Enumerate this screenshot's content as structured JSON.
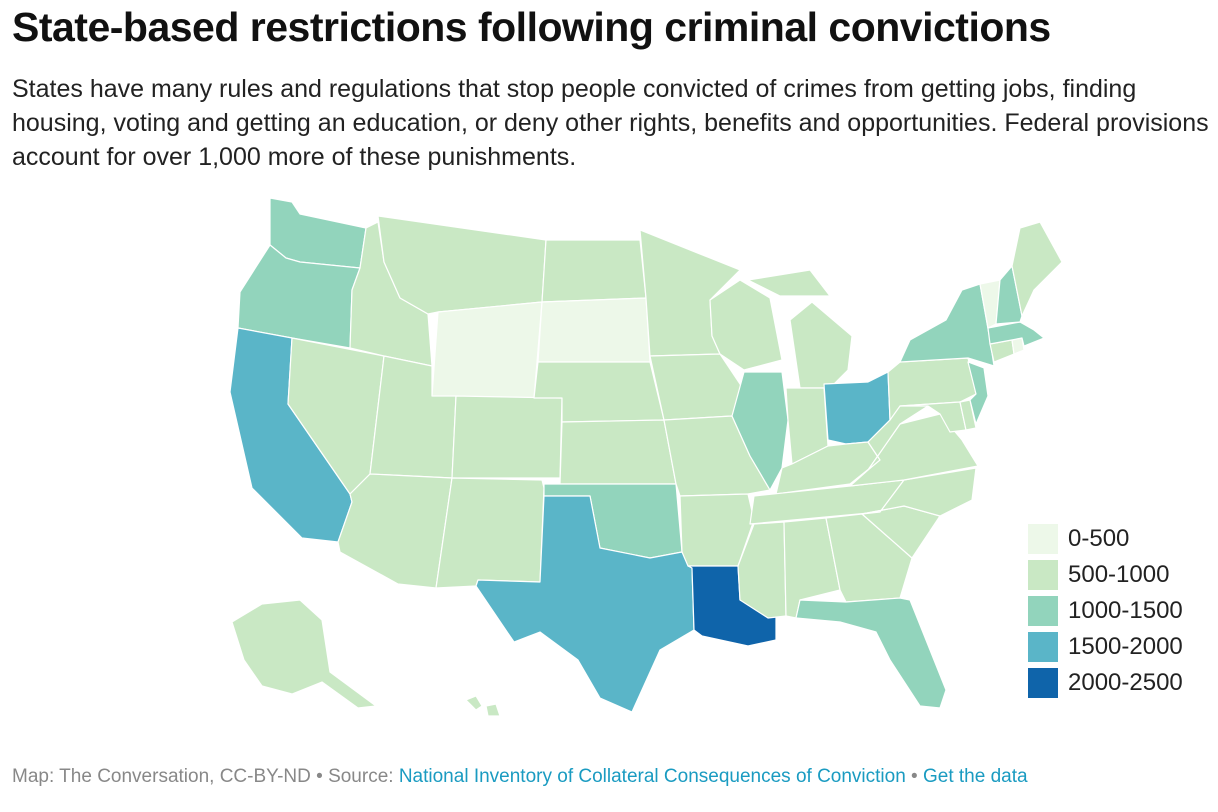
{
  "title": "State-based restrictions following criminal convictions",
  "subtitle": "States have many rules and regulations that stop people convicted of crimes from getting jobs, finding housing, voting and getting an education, or deny other rights, benefits and opportunities. Federal provisions account for over 1,000 more of these punishments.",
  "colors": {
    "0-500": "#edf8e9",
    "500-1000": "#c9e8c4",
    "1000-1500": "#92d4bc",
    "1500-2000": "#5ab5c8",
    "2000-2500": "#0f64aa"
  },
  "legend": [
    {
      "label": "0-500",
      "key": "0-500"
    },
    {
      "label": "500-1000",
      "key": "500-1000"
    },
    {
      "label": "1000-1500",
      "key": "1000-1500"
    },
    {
      "label": "1500-2000",
      "key": "1500-2000"
    },
    {
      "label": "2000-2500",
      "key": "2000-2500"
    }
  ],
  "states": {
    "WA": "1000-1500",
    "OR": "1000-1500",
    "CA": "1500-2000",
    "NV": "500-1000",
    "ID": "500-1000",
    "MT": "500-1000",
    "WY": "0-500",
    "UT": "500-1000",
    "AZ": "500-1000",
    "CO": "500-1000",
    "NM": "500-1000",
    "ND": "500-1000",
    "SD": "0-500",
    "NE": "500-1000",
    "KS": "500-1000",
    "OK": "1000-1500",
    "TX": "1500-2000",
    "MN": "500-1000",
    "IA": "500-1000",
    "MO": "500-1000",
    "AR": "500-1000",
    "LA": "2000-2500",
    "WI": "500-1000",
    "IL": "1000-1500",
    "MI": "500-1000",
    "IN": "500-1000",
    "OH": "1500-2000",
    "KY": "500-1000",
    "TN": "500-1000",
    "MS": "500-1000",
    "AL": "500-1000",
    "GA": "500-1000",
    "FL": "1000-1500",
    "SC": "500-1000",
    "NC": "500-1000",
    "VA": "500-1000",
    "WV": "500-1000",
    "PA": "500-1000",
    "NY": "1000-1500",
    "VT": "0-500",
    "NH": "1000-1500",
    "ME": "500-1000",
    "MA": "1000-1500",
    "CT": "500-1000",
    "RI": "0-500",
    "NJ": "1000-1500",
    "DE": "500-1000",
    "MD": "500-1000",
    "AK": "500-1000",
    "HI": "500-1000"
  },
  "footer": {
    "credit": "Map: The Conversation, CC-BY-ND",
    "sep1": " • ",
    "source_label": "Source: ",
    "source_link": "National Inventory of Collateral Consequences of Conviction",
    "sep2": " • ",
    "data_link": "Get the data"
  }
}
